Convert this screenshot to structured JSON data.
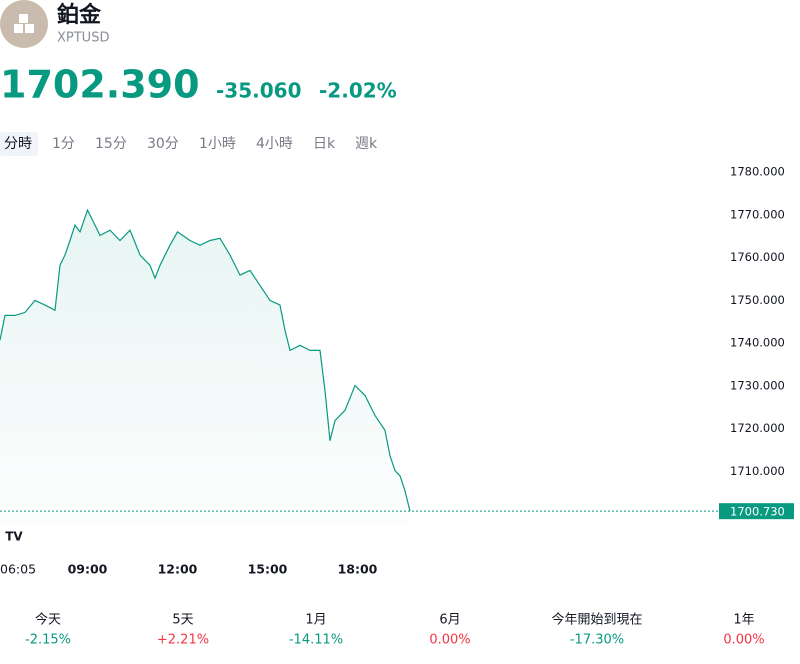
{
  "header": {
    "title": "鉑金",
    "symbol": "XPTUSD",
    "price": "1702.390",
    "change": "-35.060",
    "change_pct": "-2.02%"
  },
  "tabs": [
    "分時",
    "1分",
    "15分",
    "30分",
    "1小時",
    "4小時",
    "日k",
    "週k"
  ],
  "chart_data": {
    "type": "line",
    "color": "#089981",
    "x": [
      "06:05",
      "06:15",
      "06:35",
      "06:55",
      "07:15",
      "07:35",
      "07:55",
      "08:05",
      "08:15",
      "08:25",
      "08:35",
      "08:45",
      "09:00",
      "09:15",
      "09:25",
      "09:45",
      "10:05",
      "10:25",
      "10:45",
      "11:05",
      "11:15",
      "11:25",
      "11:45",
      "12:00",
      "12:25",
      "12:45",
      "13:05",
      "13:25",
      "13:45",
      "14:05",
      "14:25",
      "14:45",
      "15:05",
      "15:25",
      "15:35",
      "15:45",
      "16:05",
      "16:25",
      "16:45",
      "16:55",
      "17:05",
      "17:15",
      "17:35",
      "17:55",
      "18:15",
      "18:35",
      "18:55",
      "19:05",
      "19:15",
      "19:25",
      "19:35",
      "19:45"
    ],
    "values": [
      1740.7,
      1746.5,
      1746.5,
      1747.2,
      1750,
      1748.9,
      1747.7,
      1758.2,
      1760.6,
      1764,
      1767.6,
      1766,
      1771.1,
      1767.6,
      1765.2,
      1766.4,
      1764,
      1766.4,
      1760.6,
      1758.2,
      1755.2,
      1758.2,
      1762.9,
      1766,
      1764,
      1762.9,
      1764,
      1764.5,
      1760.6,
      1755.9,
      1757,
      1753.5,
      1750,
      1748.9,
      1743,
      1738.3,
      1739.5,
      1738.3,
      1738.3,
      1728.9,
      1717.2,
      1721.9,
      1724.3,
      1730.1,
      1727.8,
      1723.1,
      1719.6,
      1713.7,
      1710.2,
      1709,
      1705.5,
      1700.73
    ],
    "xticks": [
      "06:05",
      "09:00",
      "12:00",
      "15:00",
      "18:00"
    ],
    "ylim": [
      1697.5,
      1785.15
    ],
    "yticks": [
      {
        "value": 1710,
        "label": "1710.000"
      },
      {
        "value": 1720,
        "label": "1720.000"
      },
      {
        "value": 1730,
        "label": "1730.000"
      },
      {
        "value": 1740,
        "label": "1740.000"
      },
      {
        "value": 1750,
        "label": "1750.000"
      },
      {
        "value": 1760,
        "label": "1760.000"
      },
      {
        "value": 1770,
        "label": "1770.000"
      },
      {
        "value": 1780,
        "label": "1780.000"
      }
    ],
    "last_price": {
      "value": 1700.73,
      "label": "1700.730"
    }
  },
  "performance": [
    {
      "period": "今天",
      "value": "-2.15%",
      "color": "#089981"
    },
    {
      "period": "5天",
      "value": "+2.21%",
      "color": "#f23645"
    },
    {
      "period": "1月",
      "value": "-14.11%",
      "color": "#089981"
    },
    {
      "period": "6月",
      "value": "0.00%",
      "color": "#f23645"
    },
    {
      "period": "今年開始到現在",
      "value": "-17.30%",
      "color": "#089981"
    },
    {
      "period": "1年",
      "value": "0.00%",
      "color": "#f23645"
    }
  ]
}
